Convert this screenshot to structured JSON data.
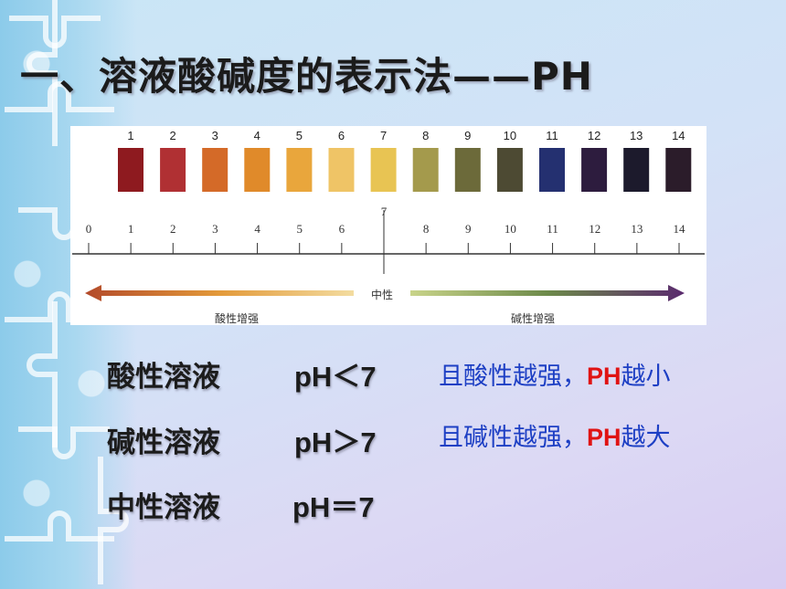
{
  "slide": {
    "title": "一、溶液酸碱度的表示法——PH"
  },
  "figure": {
    "swatch_numbers": [
      "1",
      "2",
      "3",
      "4",
      "5",
      "6",
      "7",
      "8",
      "9",
      "10",
      "11",
      "12",
      "13",
      "14"
    ],
    "swatch_colors": [
      "#8e1a1f",
      "#b03033",
      "#d46a28",
      "#e08a2a",
      "#e9a63c",
      "#efc466",
      "#e8c453",
      "#a49a4c",
      "#6c6a3a",
      "#4d4a33",
      "#243070",
      "#2d1c3e",
      "#1c1a2c",
      "#2b1c2a"
    ],
    "axis_ticks": [
      "0",
      "1",
      "2",
      "3",
      "4",
      "5",
      "6",
      "7",
      "8",
      "9",
      "10",
      "11",
      "12",
      "14"
    ],
    "axis_last_tick": "14",
    "neutral_label": "中性",
    "acid_label": "酸性增强",
    "base_label": "碱性增强",
    "colors": {
      "acid_arrow": "#b14a2a",
      "base_arrow": "#5a2a6e"
    }
  },
  "rows": [
    {
      "label": "酸性溶液",
      "ph": "pH＜7"
    },
    {
      "label": "碱性溶液",
      "ph": "pH＞7"
    },
    {
      "label": "中性溶液",
      "ph": "pH＝7"
    }
  ],
  "notes": [
    {
      "prefix": "且酸性越强，",
      "highlight": "PH",
      "suffix": "越小"
    },
    {
      "prefix": "且碱性越强，",
      "highlight": "PH",
      "suffix": "越大"
    }
  ]
}
